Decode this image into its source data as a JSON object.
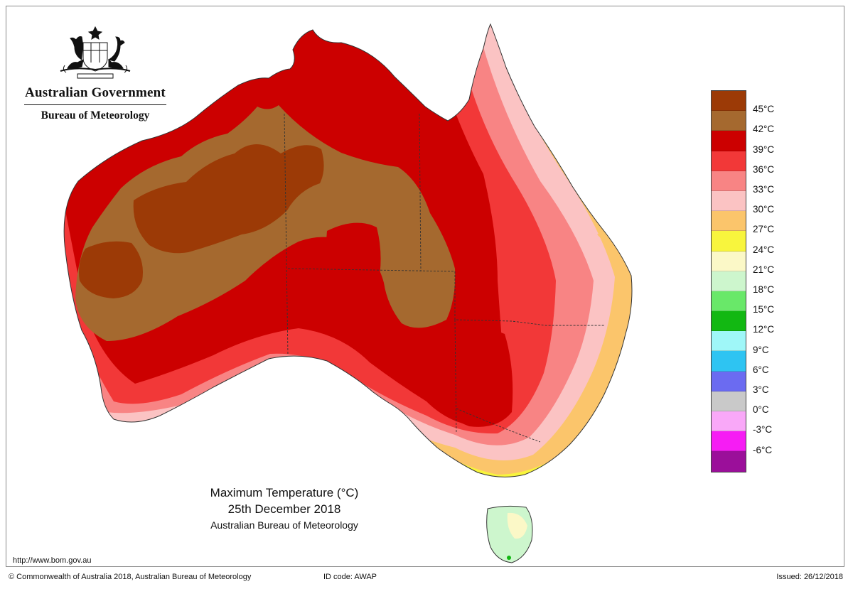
{
  "header": {
    "government": "Australian Government",
    "bureau": "Bureau of Meteorology",
    "logo_icon": "commonwealth-coat-of-arms-icon"
  },
  "title": {
    "line1": "Maximum Temperature (°C)",
    "line2": "25th December 2018",
    "line3": "Australian Bureau of Meteorology"
  },
  "url": "http://www.bom.gov.au",
  "footer": {
    "copyright": "© Commonwealth of Australia 2018, Australian Bureau of Meteorology",
    "id_code": "ID code: AWAP",
    "issued": "Issued: 26/12/2018"
  },
  "legend": {
    "colors": [
      "#9c3a06",
      "#a5692f",
      "#cc0000",
      "#f23838",
      "#f88484",
      "#fbc3c3",
      "#fbc56b",
      "#f8f53d",
      "#fbf8c7",
      "#cdf6cd",
      "#69e869",
      "#12b812",
      "#9ff7f8",
      "#2ec4f2",
      "#6b6bf1",
      "#c9c9c9",
      "#f9a8f8",
      "#f61cf4",
      "#9b0f9a"
    ],
    "labels": [
      "45°C",
      "42°C",
      "39°C",
      "36°C",
      "33°C",
      "30°C",
      "27°C",
      "24°C",
      "21°C",
      "18°C",
      "15°C",
      "12°C",
      "9°C",
      "6°C",
      "3°C",
      "0°C",
      "-3°C",
      "-6°C"
    ]
  }
}
